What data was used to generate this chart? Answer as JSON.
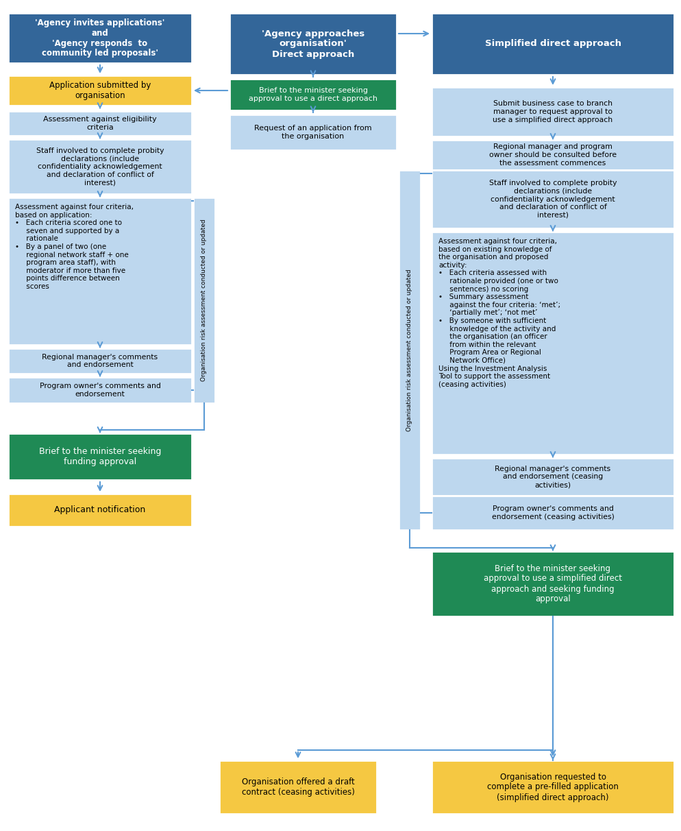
{
  "colors": {
    "dark_blue": "#336699",
    "light_blue": "#BDD7EE",
    "green": "#1F8A55",
    "yellow": "#F5C842",
    "arrow": "#5B9BD5"
  },
  "left_header": "'Agency invites applications'\nand\n'Agency responds  to\ncommunity led proposals'",
  "left_boxes": [
    {
      "text": "Application submitted by\norganisation",
      "color": "yellow",
      "bold": true
    },
    {
      "text": "Assessment against eligibility\ncriteria",
      "color": "light_blue",
      "bold": false
    },
    {
      "text": "Staff involved to complete probity\ndeclarations (include\nconfidentiality acknowledgement\nand declaration of conflict of\ninterest)",
      "color": "light_blue",
      "bold": false
    },
    {
      "text": "Assessment against four criteria,\nbased on application:\n•   Each criteria scored one to\n     seven and supported by a\n     rationale\n•   By a panel of two (one\n     regional network staff + one\n     program area staff), with\n     moderator if more than five\n     points difference between\n     scores",
      "color": "light_blue",
      "bold": false,
      "left_align": true
    },
    {
      "text": "Regional manager's comments\nand endorsement",
      "color": "light_blue",
      "bold": false
    },
    {
      "text": "Program owner's comments and\nendorsement",
      "color": "light_blue",
      "bold": false
    },
    {
      "text": "Brief to the minister seeking\nfunding approval",
      "color": "green",
      "bold": false
    },
    {
      "text": "Applicant notification",
      "color": "yellow",
      "bold": false
    }
  ],
  "mid_header": "'Agency approaches\norganisation'\nDirect approach",
  "mid_green": "Brief to the minister seeking\napproval to use a direct approach",
  "mid_step1": "Request of an application from\nthe organisation",
  "right_header": "Simplified direct approach",
  "right_boxes": [
    {
      "text": "Submit business case to branch\nmanager to request approval to\nuse a simplified direct approach",
      "color": "light_blue",
      "bold": false
    },
    {
      "text": "Regional manager and program\nowner should be consulted before\nthe assessment commences",
      "color": "light_blue",
      "bold": false
    },
    {
      "text": "Staff involved to complete probity\ndeclarations (include\nconfidentiality acknowledgement\nand declaration of conflict of\ninterest)",
      "color": "light_blue",
      "bold": false
    },
    {
      "text": "Assessment against four criteria,\nbased on existing knowledge of\nthe organisation and proposed\nactivity:\n•   Each criteria assessed with\n     rationale provided (one or two\n     sentences) no scoring\n•   Summary assessment\n     against the four criteria: ‘met’;\n     ‘partially met’; ‘not met’\n•   By someone with sufficient\n     knowledge of the activity and\n     the organisation (an officer\n     from within the relevant\n     Program Area or Regional\n     Network Office)\nUsing the Investment Analysis\nTool to support the assessment\n(ceasing activities)",
      "color": "light_blue",
      "bold": false,
      "left_align": true
    },
    {
      "text": "Regional manager's comments\nand endorsement (ceasing\nactivities)",
      "color": "light_blue",
      "bold": false
    },
    {
      "text": "Program owner's comments and\nendorsement (ceasing activities)",
      "color": "light_blue",
      "bold": false
    },
    {
      "text": "Brief to the minister seeking\napproval to use a simplified direct\napproach and seeking funding\napproval",
      "color": "green",
      "bold": false
    }
  ],
  "bottom_left": "Organisation offered a draft\ncontract (ceasing activities)",
  "bottom_right": "Organisation requested to\ncomplete a pre-filled application\n(simplified direct approach)",
  "side_label": "Organisation risk assessment conducted or updated"
}
